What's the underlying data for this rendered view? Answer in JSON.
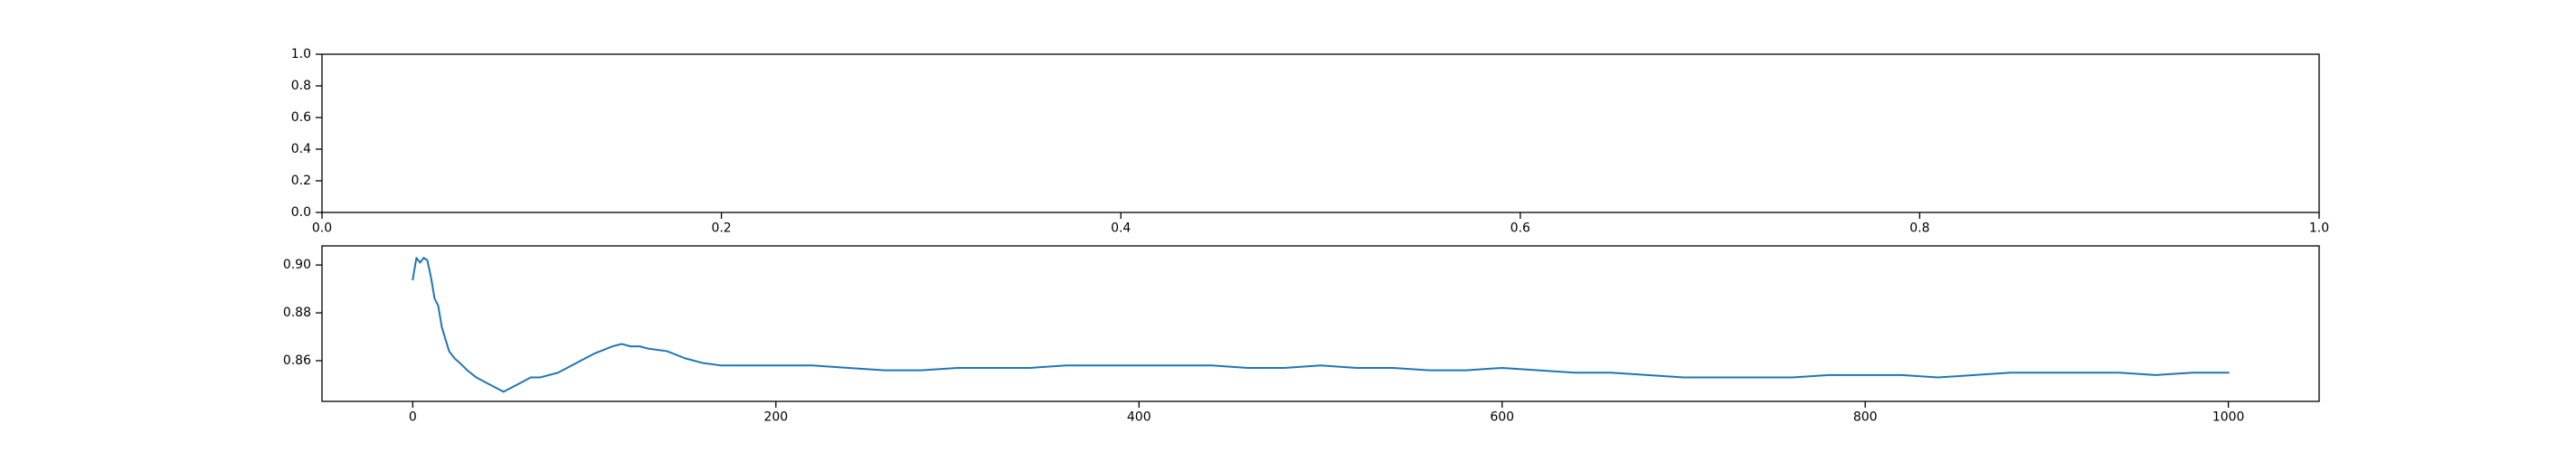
{
  "chart_data": [
    {
      "type": "line",
      "title": "",
      "xlabel": "",
      "ylabel": "",
      "xlim": [
        0.0,
        1.0
      ],
      "ylim": [
        0.0,
        1.0
      ],
      "xticks": [
        {
          "value": 0.0,
          "label": "0.0"
        },
        {
          "value": 0.2,
          "label": "0.2"
        },
        {
          "value": 0.4,
          "label": "0.4"
        },
        {
          "value": 0.6,
          "label": "0.6"
        },
        {
          "value": 0.8,
          "label": "0.8"
        },
        {
          "value": 1.0,
          "label": "1.0"
        }
      ],
      "yticks": [
        {
          "value": 0.0,
          "label": "0.0"
        },
        {
          "value": 0.2,
          "label": "0.2"
        },
        {
          "value": 0.4,
          "label": "0.4"
        },
        {
          "value": 0.6,
          "label": "0.6"
        },
        {
          "value": 0.8,
          "label": "0.8"
        },
        {
          "value": 1.0,
          "label": "1.0"
        }
      ],
      "grid": false,
      "series": []
    },
    {
      "type": "line",
      "title": "",
      "xlabel": "",
      "ylabel": "",
      "xlim": [
        -50,
        1050
      ],
      "ylim": [
        0.843,
        0.908
      ],
      "xticks": [
        {
          "value": 0,
          "label": "0"
        },
        {
          "value": 200,
          "label": "200"
        },
        {
          "value": 400,
          "label": "400"
        },
        {
          "value": 600,
          "label": "600"
        },
        {
          "value": 800,
          "label": "800"
        },
        {
          "value": 1000,
          "label": "1000"
        }
      ],
      "yticks": [
        {
          "value": 0.86,
          "label": "0.86"
        },
        {
          "value": 0.88,
          "label": "0.88"
        },
        {
          "value": 0.9,
          "label": "0.90"
        }
      ],
      "grid": false,
      "series": [
        {
          "color": "#1f77b4",
          "x": [
            0,
            2,
            4,
            6,
            8,
            10,
            12,
            14,
            16,
            18,
            20,
            23,
            26,
            30,
            35,
            40,
            45,
            50,
            55,
            60,
            65,
            70,
            80,
            90,
            100,
            110,
            115,
            120,
            125,
            130,
            140,
            150,
            160,
            170,
            180,
            200,
            220,
            240,
            260,
            280,
            300,
            320,
            340,
            360,
            380,
            400,
            420,
            440,
            460,
            480,
            500,
            520,
            540,
            560,
            580,
            600,
            620,
            640,
            660,
            680,
            700,
            720,
            740,
            760,
            780,
            800,
            820,
            840,
            860,
            880,
            900,
            920,
            940,
            960,
            980,
            1000
          ],
          "y": [
            0.894,
            0.903,
            0.901,
            0.903,
            0.902,
            0.895,
            0.886,
            0.883,
            0.874,
            0.869,
            0.864,
            0.861,
            0.859,
            0.856,
            0.853,
            0.851,
            0.849,
            0.847,
            0.849,
            0.851,
            0.853,
            0.853,
            0.855,
            0.859,
            0.863,
            0.866,
            0.867,
            0.866,
            0.866,
            0.865,
            0.864,
            0.861,
            0.859,
            0.858,
            0.858,
            0.858,
            0.858,
            0.857,
            0.856,
            0.856,
            0.857,
            0.857,
            0.857,
            0.858,
            0.858,
            0.858,
            0.858,
            0.858,
            0.857,
            0.857,
            0.858,
            0.857,
            0.857,
            0.856,
            0.856,
            0.857,
            0.856,
            0.855,
            0.855,
            0.854,
            0.853,
            0.853,
            0.853,
            0.853,
            0.854,
            0.854,
            0.854,
            0.853,
            0.854,
            0.855,
            0.855,
            0.855,
            0.855,
            0.854,
            0.855,
            0.855
          ]
        }
      ]
    }
  ]
}
